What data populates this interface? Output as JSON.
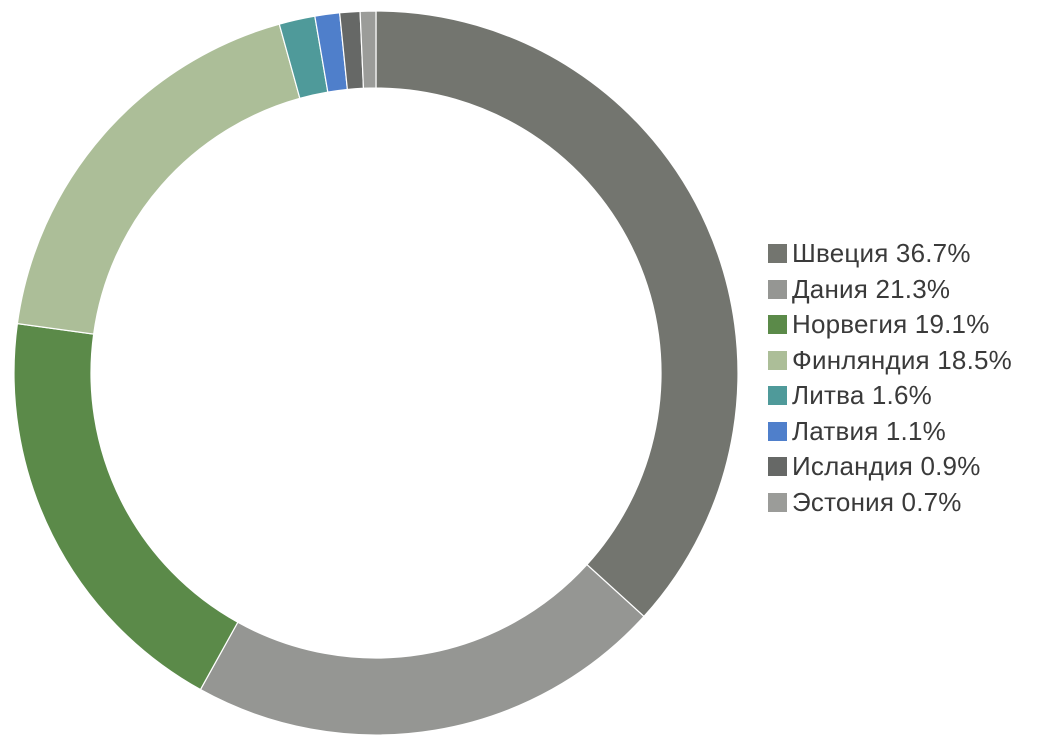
{
  "chart_data": {
    "type": "pie",
    "variant": "donut",
    "title": "",
    "start_angle_deg": 0,
    "direction": "clockwise",
    "legend_position": "right",
    "slices": [
      {
        "label": "Швеция 36.7%",
        "category": "Швеция",
        "value": 36.7,
        "color": "#73756f"
      },
      {
        "label": "Дания 21.3%",
        "category": "Дания",
        "value": 21.3,
        "color": "#959693"
      },
      {
        "label": "Норвегия 19.1%",
        "category": "Норвегия",
        "value": 19.1,
        "color": "#5b8a49"
      },
      {
        "label": "Финляндия 18.5%",
        "category": "Финляндия",
        "value": 18.5,
        "color": "#acbe98"
      },
      {
        "label": "Литва 1.6%",
        "category": "Литва",
        "value": 1.6,
        "color": "#4f9a9a"
      },
      {
        "label": "Латвия 1.1%",
        "category": "Латвия",
        "value": 1.1,
        "color": "#4f7fcb"
      },
      {
        "label": "Исландия 0.9%",
        "category": "Исландия",
        "value": 0.9,
        "color": "#666866"
      },
      {
        "label": "Эстония 0.7%",
        "category": "Эстония",
        "value": 0.7,
        "color": "#9b9c99"
      }
    ]
  }
}
